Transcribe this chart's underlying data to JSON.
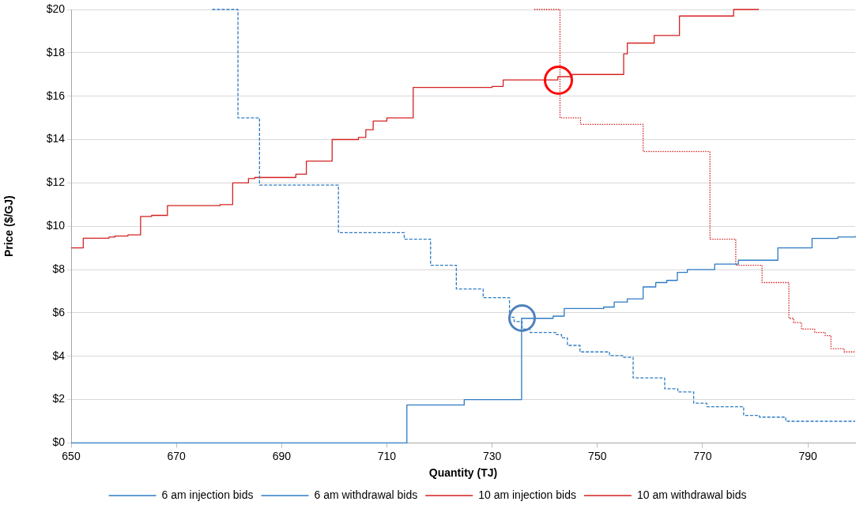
{
  "chart_data": {
    "type": "step",
    "xlabel": "Quantity (TJ)",
    "ylabel": "Price ($/GJ)",
    "xlim": [
      650,
      799
    ],
    "xticks": [
      650,
      670,
      690,
      710,
      730,
      750,
      770,
      790
    ],
    "ylim": [
      0,
      20
    ],
    "yticks": [
      {
        "value": 0,
        "label": "$0"
      },
      {
        "value": 2,
        "label": "$2"
      },
      {
        "value": 4,
        "label": "$4"
      },
      {
        "value": 6,
        "label": "$6"
      },
      {
        "value": 8,
        "label": "$8"
      },
      {
        "value": 10,
        "label": "$10"
      },
      {
        "value": 12,
        "label": "$12"
      },
      {
        "value": 14,
        "label": "$14"
      },
      {
        "value": 16,
        "label": "$16"
      },
      {
        "value": 18,
        "label": "$18"
      },
      {
        "value": 20,
        "label": "$20"
      }
    ],
    "grid": "y",
    "legend": "bottom",
    "marker": "none",
    "series": [
      {
        "name": "6 am injection bids",
        "color": "#2e7bc4",
        "line_style": "solid",
        "x": [
          650,
          713.8,
          724.7,
          735.6,
          741.6,
          743.7,
          751.2,
          753.2,
          755.7,
          758.7,
          761.1,
          763.2,
          765.2,
          767.1,
          772.3,
          776.8,
          784.3,
          790.8,
          795.7,
          799
        ],
        "values": [
          0,
          1.75,
          2,
          5.75,
          5.85,
          6.2,
          6.27,
          6.5,
          6.65,
          7.2,
          7.4,
          7.5,
          7.87,
          8,
          8.25,
          8.43,
          9,
          9.44,
          9.5,
          9.55
        ]
      },
      {
        "name": "6 am withdrawal bids",
        "color": "#2e7bc4",
        "line_style": "dashed",
        "x": [
          676.8,
          681.7,
          685.8,
          700.8,
          713.3,
          718.3,
          723.2,
          728.3,
          733.3,
          734.2,
          735.7,
          737.2,
          742.2,
          743.2,
          744.3,
          746.7,
          752.3,
          754.8,
          756.8,
          762.8,
          765.3,
          768.3,
          770.8,
          777.8,
          780.8,
          785.8,
          799
        ],
        "values": [
          20,
          15,
          11.9,
          9.7,
          9.4,
          8.2,
          7.1,
          6.7,
          5.8,
          5.6,
          5.25,
          5.1,
          5,
          4.85,
          4.5,
          4.2,
          4.03,
          3.95,
          3,
          2.5,
          2.35,
          1.83,
          1.67,
          1.27,
          1.19,
          1,
          1
        ]
      },
      {
        "name": "10 am injection bids",
        "color": "#d42222",
        "line_style": "solid",
        "x": [
          650,
          652.3,
          657.2,
          658.3,
          660.8,
          663.2,
          665.3,
          668.3,
          678.3,
          680.7,
          683.7,
          684.9,
          692.7,
          694.7,
          699.6,
          704.6,
          706,
          707.4,
          710,
          715,
          730,
          732.1,
          742.5,
          745.2,
          755,
          755.7,
          760.8,
          765.6,
          775.9,
          780.7
        ],
        "values": [
          9,
          9.45,
          9.5,
          9.55,
          9.6,
          10.45,
          10.5,
          10.95,
          11,
          12,
          12.2,
          12.25,
          12.4,
          13,
          14,
          14.1,
          14.45,
          14.85,
          15,
          16.4,
          16.45,
          16.75,
          16.9,
          17,
          17.95,
          18.45,
          18.8,
          19.7,
          20,
          20
        ]
      },
      {
        "name": "10 am withdrawal bids",
        "color": "#d42222",
        "line_style": "dotted",
        "x": [
          738,
          742.9,
          746.8,
          758.7,
          771.4,
          776.3,
          781.3,
          786.4,
          787.3,
          788.8,
          791.3,
          793.3,
          794.4,
          796.9,
          799
        ],
        "values": [
          20,
          15,
          14.7,
          13.45,
          9.4,
          8.2,
          7.4,
          5.75,
          5.55,
          5.25,
          5.1,
          4.95,
          4.35,
          4.2,
          4.2
        ]
      }
    ]
  }
}
